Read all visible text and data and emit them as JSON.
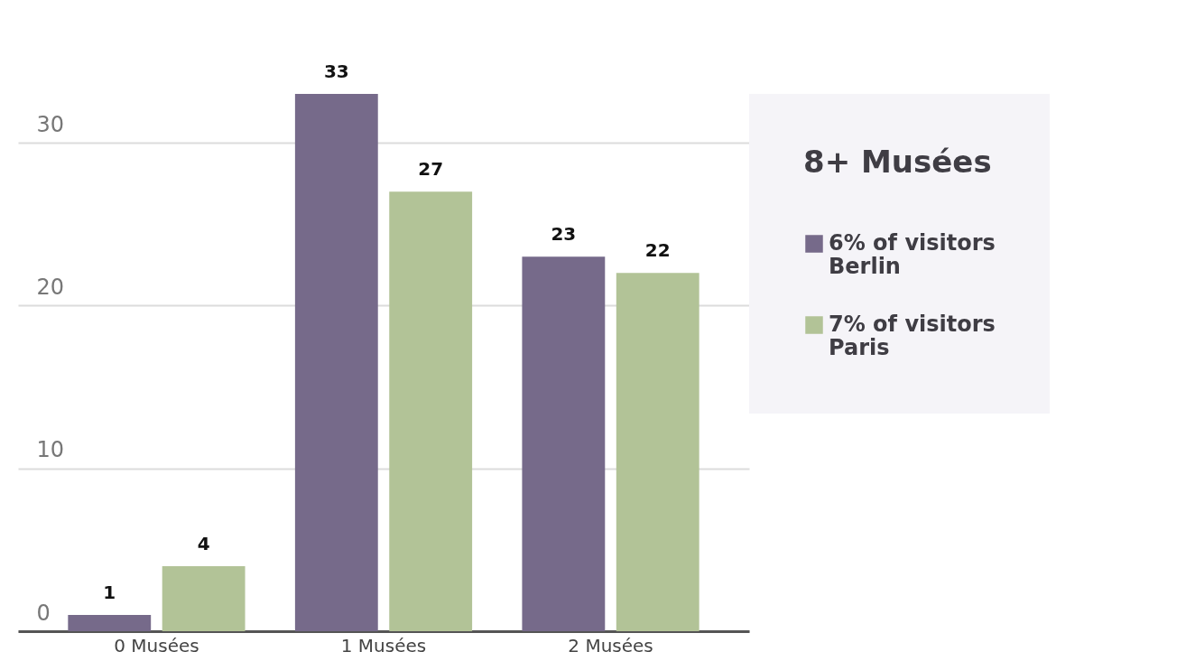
{
  "chart_data": {
    "type": "bar",
    "legend_title": "8+ Musées",
    "categories": [
      "0 Musées",
      "1 Musées",
      "2 Musées"
    ],
    "series": [
      {
        "name": "6% of visitors\nBerlin",
        "color": "#766a8a",
        "values": [
          1,
          33,
          23
        ]
      },
      {
        "name": "7% of visitors\nParis",
        "color": "#b2c397",
        "values": [
          4,
          27,
          22
        ]
      }
    ],
    "ylim": [
      0,
      33
    ],
    "yticks": [
      0,
      10,
      20,
      30
    ],
    "grid": "y",
    "legend": "right",
    "data_labels": true
  }
}
